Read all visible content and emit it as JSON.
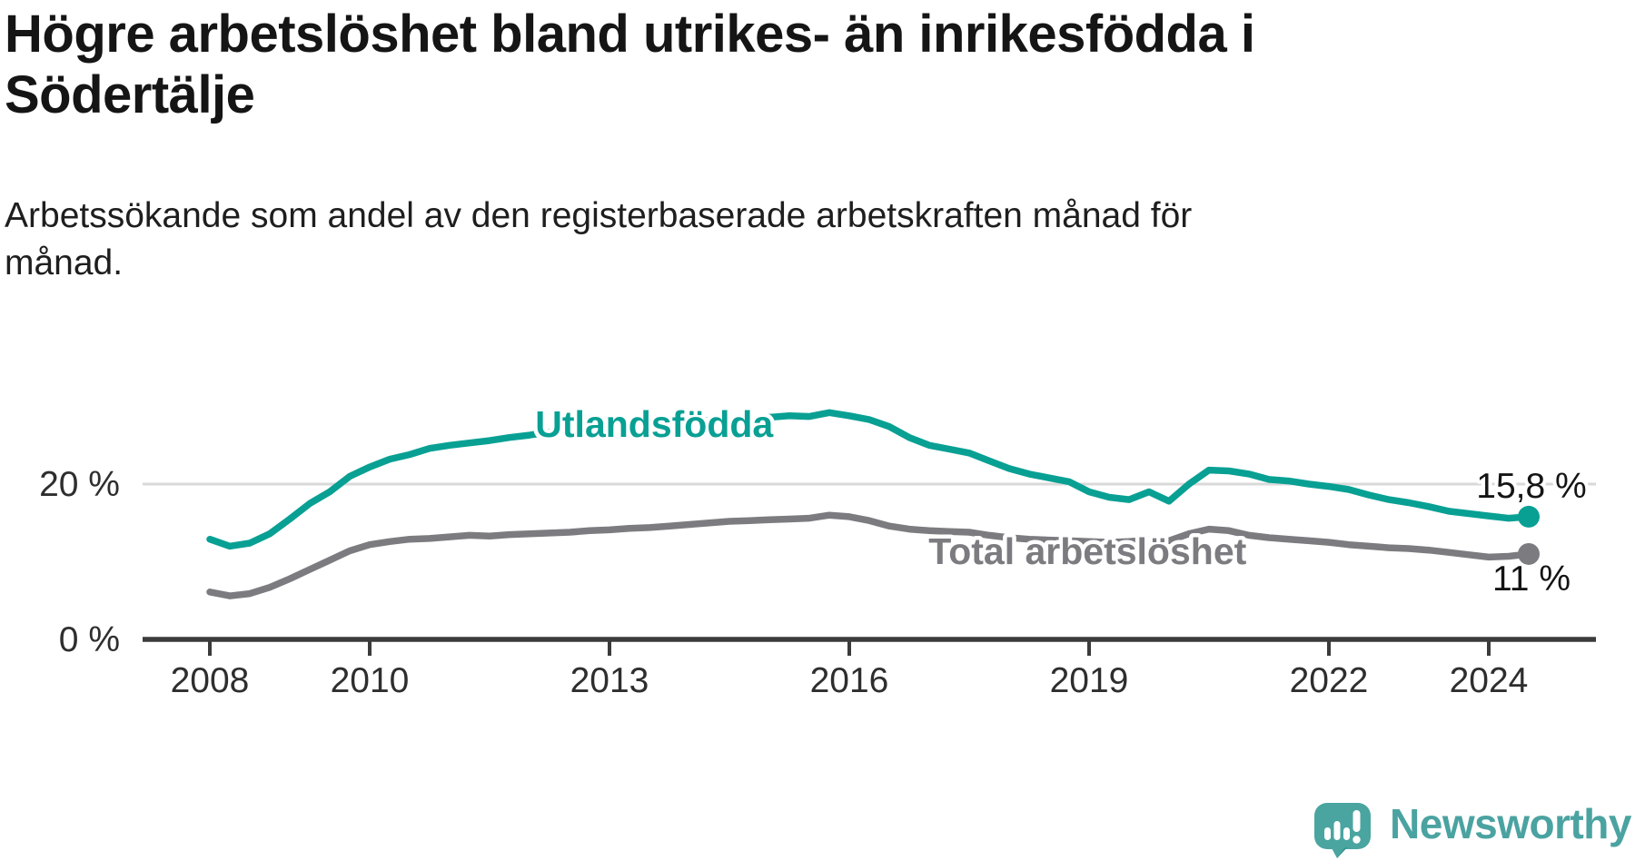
{
  "header": {
    "title_lines": [
      "Högre arbetslöshet bland utrikes- än inrikesfödda i",
      "Södertälje"
    ],
    "subtitle_lines": [
      "Arbetssökande som andel av den registerbaserade arbetskraften månad för",
      "månad."
    ]
  },
  "footer": {
    "brand": "Newsworthy",
    "logo_icon": "newsworthy-speech-bubble-bar-chart-icon"
  },
  "colors": {
    "title_text": "#151515",
    "axis_text": "#2e2e2e",
    "axis_line": "#3b3b3b",
    "gridline": "#d9d9d9",
    "series_foreign_born": "#09a094",
    "series_total": "#7c7c80",
    "annotation_text": "#141414",
    "brand_teal": "#4ba3a1"
  },
  "chart_data": {
    "type": "line",
    "title": "Högre arbetslöshet bland utrikes- än inrikesfödda i Södertälje",
    "subtitle": "Arbetssökande som andel av den registerbaserade arbetskraften månad för månad.",
    "unit": "%",
    "grid": "horizontal-only",
    "legend": "inline-labels-on-lines",
    "x_start": 2008,
    "x_step_years": 0.25,
    "x_axis": {
      "ticks": [
        2008,
        2010,
        2013,
        2016,
        2019,
        2022,
        2024
      ],
      "range": [
        2008,
        2024.5
      ]
    },
    "y_axis": {
      "ticks": [
        {
          "pct": 0,
          "label": "0 %"
        },
        {
          "pct": 20,
          "label": "20 %"
        }
      ],
      "range": [
        0,
        36
      ]
    },
    "series": [
      {
        "id": "utlandsfodda",
        "name": "Utlandsfödda",
        "color": "#09a094",
        "end_label": "15,8 %",
        "end_value": 15.8,
        "end_label_side": "above",
        "name_anchor": {
          "year": 2013.56,
          "pct": 27.7
        },
        "values": [
          12.9,
          12.0,
          12.4,
          13.6,
          15.5,
          17.5,
          19.0,
          21.0,
          22.2,
          23.2,
          23.8,
          24.6,
          25.0,
          25.3,
          25.6,
          26.0,
          26.3,
          26.7,
          27.0,
          27.2,
          27.4,
          27.7,
          27.6,
          27.9,
          28.1,
          28.2,
          28.4,
          28.3,
          28.6,
          28.8,
          28.7,
          29.2,
          28.8,
          28.3,
          27.4,
          26.0,
          25.0,
          24.5,
          24.0,
          23.0,
          22.0,
          21.3,
          20.8,
          20.3,
          19.0,
          18.3,
          18.0,
          19.0,
          17.8,
          20.0,
          21.8,
          21.7,
          21.3,
          20.6,
          20.4,
          20.0,
          19.7,
          19.3,
          18.6,
          18.0,
          17.6,
          17.1,
          16.5,
          16.2,
          15.9,
          15.6,
          15.8
        ]
      },
      {
        "id": "total-arbetsloshet",
        "name": "Total arbetslöshet",
        "color": "#7c7c80",
        "end_label": "11 %",
        "end_value": 11,
        "end_label_side": "below",
        "name_anchor": {
          "year": 2018.98,
          "pct": 11.35
        },
        "values": [
          6.1,
          5.6,
          5.9,
          6.7,
          7.8,
          9.0,
          10.2,
          11.4,
          12.2,
          12.6,
          12.9,
          13.0,
          13.2,
          13.4,
          13.3,
          13.5,
          13.6,
          13.7,
          13.8,
          14.0,
          14.1,
          14.3,
          14.4,
          14.6,
          14.8,
          15.0,
          15.2,
          15.3,
          15.4,
          15.5,
          15.6,
          16.0,
          15.8,
          15.3,
          14.6,
          14.2,
          14.0,
          13.9,
          13.8,
          13.4,
          13.1,
          12.9,
          12.8,
          12.7,
          12.6,
          12.5,
          12.6,
          12.8,
          12.7,
          13.6,
          14.2,
          14.0,
          13.4,
          13.1,
          12.9,
          12.7,
          12.5,
          12.2,
          12.0,
          11.8,
          11.7,
          11.5,
          11.2,
          10.9,
          10.6,
          10.7,
          11.0
        ]
      }
    ]
  }
}
